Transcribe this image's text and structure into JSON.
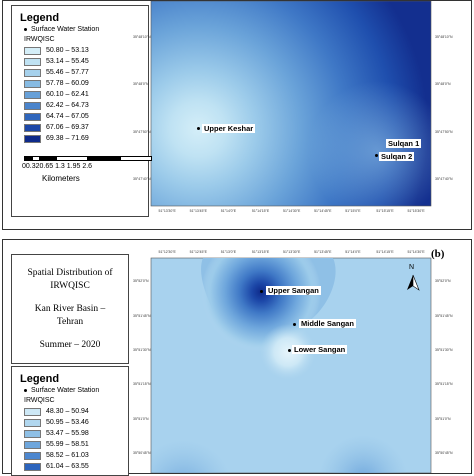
{
  "panel_a": {
    "legend": {
      "title": "Legend",
      "station_label": "Surface Water Station",
      "field": "IRWQISC",
      "classes": [
        {
          "label": "50.80 – 53.13",
          "color": "#d4eef8"
        },
        {
          "label": "53.14 – 55.45",
          "color": "#bfe2f3"
        },
        {
          "label": "55.46 – 57.77",
          "color": "#a6d1ec"
        },
        {
          "label": "57.78 – 60.09",
          "color": "#87bbe3"
        },
        {
          "label": "60.10 – 62.41",
          "color": "#67a0d8"
        },
        {
          "label": "62.42 – 64.73",
          "color": "#4a84cc"
        },
        {
          "label": "64.74 – 67.05",
          "color": "#2f66bc"
        },
        {
          "label": "67.06 – 69.37",
          "color": "#1c47a8"
        },
        {
          "label": "69.38 – 71.69",
          "color": "#0e2a8a"
        }
      ]
    },
    "scale": {
      "ticks": "00.320.65   1.3    1.95   2.6",
      "unit": "Kilometers"
    },
    "stations": [
      {
        "name": "Upper Keshar"
      },
      {
        "name": "Sulqan 1"
      },
      {
        "name": "Sulqan 2"
      }
    ],
    "bottom_coords": [
      "51°13'30\"E",
      "51°13'45\"E",
      "51°14'0\"E",
      "51°14'15\"E",
      "51°14'30\"E",
      "51°14'45\"E",
      "51°15'0\"E",
      "51°15'15\"E",
      "51°15'30\"E"
    ],
    "left_coords": [
      "35°48'10\"N",
      "35°48'0\"N",
      "35°47'50\"N",
      "35°47'40\"N"
    ],
    "right_coords": [
      "35°48'10\"N",
      "35°48'0\"N",
      "35°47'50\"N",
      "35°47'40\"N"
    ]
  },
  "panel_b": {
    "tag": "(b)",
    "info": {
      "line1": "Spatial Distribution of",
      "line2": "IRWQISC",
      "line3": "Kan River Basin –",
      "line4": "Tehran",
      "line5": "Summer – 2020"
    },
    "legend": {
      "title": "Legend",
      "station_label": "Surface Water Station",
      "field": "IRWQISC",
      "classes": [
        {
          "label": "48.30 – 50.94",
          "color": "#cde8f6"
        },
        {
          "label": "50.95 – 53.46",
          "color": "#b1d7ef"
        },
        {
          "label": "53.47 – 55.98",
          "color": "#8fc0e6"
        },
        {
          "label": "55.99 – 58.51",
          "color": "#6ea6dc"
        },
        {
          "label": "58.52 – 61.03",
          "color": "#4d87cf"
        },
        {
          "label": "61.04 – 63.55",
          "color": "#2c64bd"
        }
      ]
    },
    "stations": [
      {
        "name": "Upper Sangan"
      },
      {
        "name": "Middle Sangan"
      },
      {
        "name": "Lower Sangan"
      }
    ],
    "north": "N",
    "top_coords": [
      "51°12'30\"E",
      "51°12'45\"E",
      "51°13'0\"E",
      "51°13'15\"E",
      "51°13'30\"E",
      "51°13'45\"E",
      "51°14'0\"E",
      "51°14'15\"E",
      "51°14'30\"E"
    ],
    "left_coords": [
      "35°52'0\"N",
      "35°51'45\"N",
      "35°51'30\"N",
      "35°51'15\"N",
      "35°51'0\"N",
      "35°50'45\"N"
    ],
    "right_coords": [
      "35°52'0\"N",
      "35°51'45\"N",
      "35°51'30\"N",
      "35°51'15\"N",
      "35°51'0\"N",
      "35°50'45\"N"
    ]
  }
}
